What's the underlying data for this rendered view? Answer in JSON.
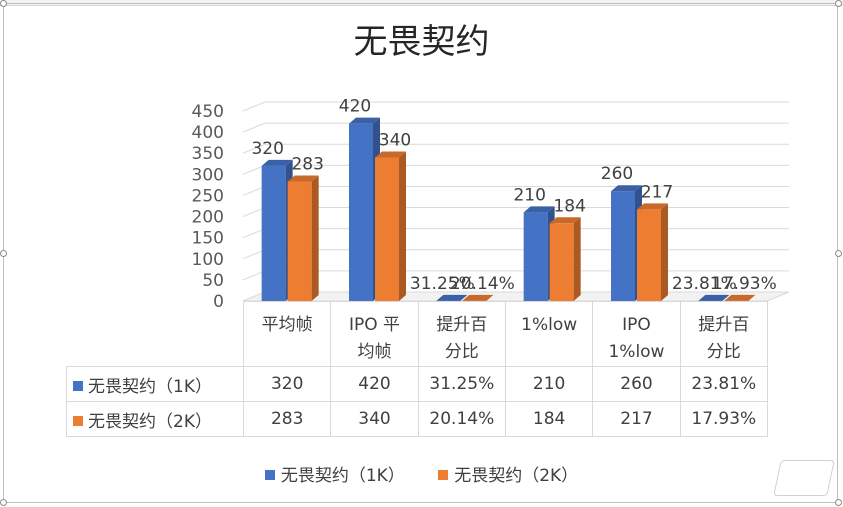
{
  "chart_data": {
    "type": "bar",
    "title": "无畏契约",
    "categories": [
      "平均帧",
      "IPO 平均帧",
      "提升百分比",
      "1%low",
      "IPO 1%low",
      "提升百分比"
    ],
    "series": [
      {
        "name": "无畏契约（1K）",
        "color": "#4472c4",
        "values": [
          320,
          420,
          0.3125,
          210,
          260,
          0.2381
        ],
        "labels": [
          "320",
          "420",
          "31.25%",
          "210",
          "260",
          "23.81%"
        ]
      },
      {
        "name": "无畏契约（2K）",
        "color": "#ed7d31",
        "values": [
          283,
          340,
          0.2014,
          184,
          217,
          0.1793
        ],
        "labels": [
          "283",
          "340",
          "20.14%",
          "184",
          "217",
          "17.93%"
        ]
      }
    ],
    "ylim": [
      0,
      450
    ],
    "yticks": [
      "0",
      "50",
      "100",
      "150",
      "200",
      "250",
      "300",
      "350",
      "400",
      "450"
    ],
    "grid": true,
    "legend": "bottom",
    "data_table": true
  }
}
